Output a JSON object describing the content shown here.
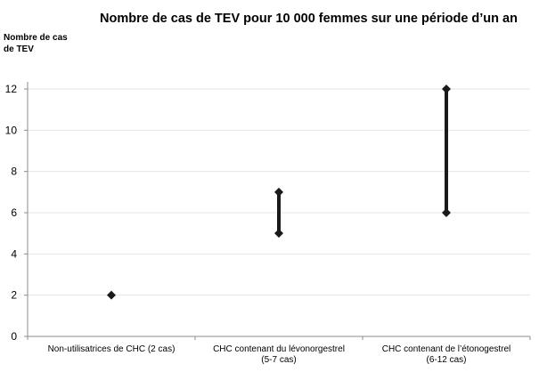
{
  "chart_data": {
    "type": "range",
    "title": "Nombre de cas de TEV pour 10 000 femmes sur une période d’un an",
    "ylabel": "Nombre de cas\nde TEV",
    "xlabel": "",
    "ylim": [
      0,
      12
    ],
    "yticks": [
      0,
      2,
      4,
      6,
      8,
      10,
      12
    ],
    "grid": true,
    "categories": [
      [
        "Non-utilisatrices de CHC (2 cas)"
      ],
      [
        "CHC contenant du lévonorgestrel",
        "(5-7 cas)"
      ],
      [
        "CHC contenant de l’étonogestrel",
        "(6-12 cas)"
      ]
    ],
    "ranges": [
      {
        "low": 2,
        "high": 2
      },
      {
        "low": 5,
        "high": 7
      },
      {
        "low": 6,
        "high": 12
      }
    ],
    "colors": {
      "marker": "#1a1a1a",
      "grid": "#e6e6e6",
      "axis": "#8c8c8c"
    }
  }
}
